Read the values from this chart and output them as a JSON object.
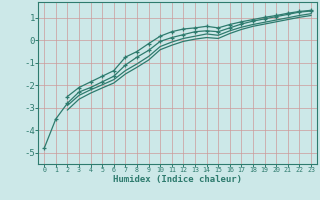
{
  "bg_color": "#cce8e8",
  "grid_color": "#cc9999",
  "line_color": "#2e7b6e",
  "xlabel": "Humidex (Indice chaleur)",
  "xlim": [
    -0.5,
    23.5
  ],
  "ylim": [
    -5.5,
    1.7
  ],
  "yticks": [
    -5,
    -4,
    -3,
    -2,
    -1,
    0,
    1
  ],
  "xticks": [
    0,
    1,
    2,
    3,
    4,
    5,
    6,
    7,
    8,
    9,
    10,
    11,
    12,
    13,
    14,
    15,
    16,
    17,
    18,
    19,
    20,
    21,
    22,
    23
  ],
  "series": [
    {
      "x": [
        0,
        1,
        2,
        3,
        4,
        5,
        6,
        7,
        8,
        9,
        10,
        11,
        12,
        13,
        14,
        15,
        16,
        17,
        18,
        19,
        20,
        21,
        22,
        23
      ],
      "y": [
        -4.8,
        -3.5,
        -2.8,
        -2.3,
        -2.1,
        -1.85,
        -1.6,
        -1.1,
        -0.75,
        -0.45,
        -0.05,
        0.12,
        0.25,
        0.38,
        0.42,
        0.38,
        0.55,
        0.72,
        0.85,
        0.95,
        1.05,
        1.15,
        1.25,
        1.3
      ],
      "markers": true
    },
    {
      "x": [
        2,
        3,
        4,
        5,
        6,
        7,
        8,
        9,
        10,
        11,
        12,
        13,
        14,
        15,
        16,
        17,
        18,
        19,
        20,
        21,
        22,
        23
      ],
      "y": [
        -2.5,
        -2.1,
        -1.85,
        -1.6,
        -1.35,
        -0.75,
        -0.5,
        -0.15,
        0.18,
        0.38,
        0.5,
        0.55,
        0.62,
        0.55,
        0.7,
        0.82,
        0.92,
        1.02,
        1.1,
        1.2,
        1.28,
        1.33
      ],
      "markers": true
    },
    {
      "x": [
        2,
        3,
        4,
        5,
        6,
        7,
        8,
        9,
        10,
        11,
        12,
        13,
        14,
        15,
        16,
        17,
        18,
        19,
        20,
        21,
        22,
        23
      ],
      "y": [
        -2.9,
        -2.45,
        -2.2,
        -1.98,
        -1.75,
        -1.35,
        -1.05,
        -0.72,
        -0.28,
        -0.08,
        0.08,
        0.18,
        0.28,
        0.22,
        0.42,
        0.58,
        0.7,
        0.8,
        0.9,
        1.0,
        1.1,
        1.18
      ],
      "markers": false
    },
    {
      "x": [
        2,
        3,
        4,
        5,
        6,
        7,
        8,
        9,
        10,
        11,
        12,
        13,
        14,
        15,
        16,
        17,
        18,
        19,
        20,
        21,
        22,
        23
      ],
      "y": [
        -3.1,
        -2.62,
        -2.35,
        -2.12,
        -1.9,
        -1.5,
        -1.2,
        -0.88,
        -0.42,
        -0.22,
        -0.05,
        0.05,
        0.12,
        0.08,
        0.3,
        0.48,
        0.62,
        0.72,
        0.82,
        0.92,
        1.02,
        1.1
      ],
      "markers": false
    }
  ]
}
